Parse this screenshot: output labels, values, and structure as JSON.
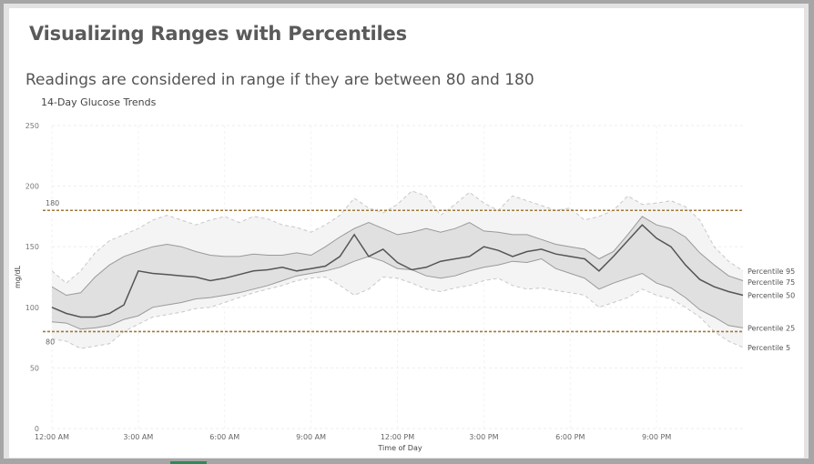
{
  "page": {
    "title": "Visualizing Ranges with Percentiles",
    "subtitle": "Readings are considered in range if they are between 80 and 180"
  },
  "chart_data": {
    "type": "area",
    "title": "14-Day Glucose Trends",
    "xlabel": "Time of Day",
    "ylabel": "mg/dL",
    "ylim": [
      0,
      250
    ],
    "xlim": [
      0,
      24
    ],
    "grid": true,
    "y_ticks": [
      0,
      50,
      100,
      150,
      200,
      250
    ],
    "x_ticks": [
      {
        "value": 0,
        "label": "12:00 AM"
      },
      {
        "value": 3,
        "label": "3:00 AM"
      },
      {
        "value": 6,
        "label": "6:00 AM"
      },
      {
        "value": 9,
        "label": "9:00 AM"
      },
      {
        "value": 12,
        "label": "12:00 PM"
      },
      {
        "value": 15,
        "label": "3:00 PM"
      },
      {
        "value": 18,
        "label": "6:00 PM"
      },
      {
        "value": 21,
        "label": "9:00 PM"
      }
    ],
    "reference_lines": [
      {
        "value": 180,
        "label": "180",
        "color": "#a07a3a"
      },
      {
        "value": 80,
        "label": "80",
        "color": "#a07a3a"
      }
    ],
    "colors": {
      "outer_band": "#f4f4f4",
      "inner_band": "#e0e0e0",
      "median": "#555555",
      "band_edge": "#999999",
      "dashed_edge": "#c8c8c8"
    },
    "x": [
      0,
      0.5,
      1,
      1.5,
      2,
      2.5,
      3,
      3.5,
      4,
      4.5,
      5,
      5.5,
      6,
      6.5,
      7,
      7.5,
      8,
      8.5,
      9,
      9.5,
      10,
      10.5,
      11,
      11.5,
      12,
      12.5,
      13,
      13.5,
      14,
      14.5,
      15,
      15.5,
      16,
      16.5,
      17,
      17.5,
      18,
      18.5,
      19,
      19.5,
      20,
      20.5,
      21,
      21.5,
      22,
      22.5,
      23,
      23.5,
      24
    ],
    "series": [
      {
        "name": "Percentile 95",
        "values": [
          130,
          120,
          130,
          145,
          155,
          160,
          165,
          172,
          176,
          172,
          168,
          172,
          175,
          170,
          175,
          173,
          168,
          166,
          162,
          168,
          176,
          190,
          182,
          178,
          185,
          196,
          192,
          176,
          185,
          195,
          186,
          180,
          192,
          188,
          184,
          180,
          182,
          172,
          175,
          180,
          192,
          185,
          186,
          188,
          183,
          172,
          150,
          138,
          130
        ]
      },
      {
        "name": "Percentile 75",
        "values": [
          117,
          110,
          112,
          125,
          135,
          142,
          146,
          150,
          152,
          150,
          146,
          143,
          142,
          142,
          144,
          143,
          143,
          145,
          143,
          150,
          158,
          165,
          170,
          165,
          160,
          162,
          165,
          162,
          165,
          170,
          163,
          162,
          160,
          160,
          156,
          152,
          150,
          148,
          140,
          146,
          160,
          175,
          168,
          165,
          158,
          145,
          135,
          126,
          122
        ]
      },
      {
        "name": "Percentile 50",
        "values": [
          100,
          95,
          92,
          92,
          95,
          102,
          130,
          128,
          127,
          126,
          125,
          122,
          124,
          127,
          130,
          131,
          133,
          130,
          132,
          134,
          142,
          160,
          142,
          148,
          137,
          131,
          133,
          138,
          140,
          142,
          150,
          147,
          142,
          146,
          148,
          144,
          142,
          140,
          130,
          142,
          155,
          168,
          157,
          150,
          135,
          123,
          117,
          113,
          110
        ]
      },
      {
        "name": "Percentile 25",
        "values": [
          88,
          87,
          82,
          83,
          85,
          90,
          93,
          100,
          102,
          104,
          107,
          108,
          110,
          112,
          115,
          118,
          122,
          126,
          128,
          130,
          133,
          138,
          142,
          138,
          132,
          131,
          126,
          124,
          126,
          130,
          133,
          135,
          138,
          137,
          140,
          132,
          128,
          124,
          115,
          120,
          124,
          128,
          120,
          116,
          108,
          98,
          92,
          85,
          83
        ]
      },
      {
        "name": "Percentile 5",
        "values": [
          74,
          72,
          66,
          68,
          70,
          80,
          86,
          92,
          94,
          96,
          99,
          100,
          104,
          108,
          112,
          115,
          118,
          122,
          124,
          125,
          118,
          110,
          115,
          125,
          124,
          120,
          115,
          113,
          116,
          118,
          122,
          124,
          118,
          115,
          116,
          114,
          112,
          110,
          100,
          104,
          108,
          115,
          110,
          107,
          100,
          92,
          80,
          72,
          67
        ]
      }
    ]
  }
}
